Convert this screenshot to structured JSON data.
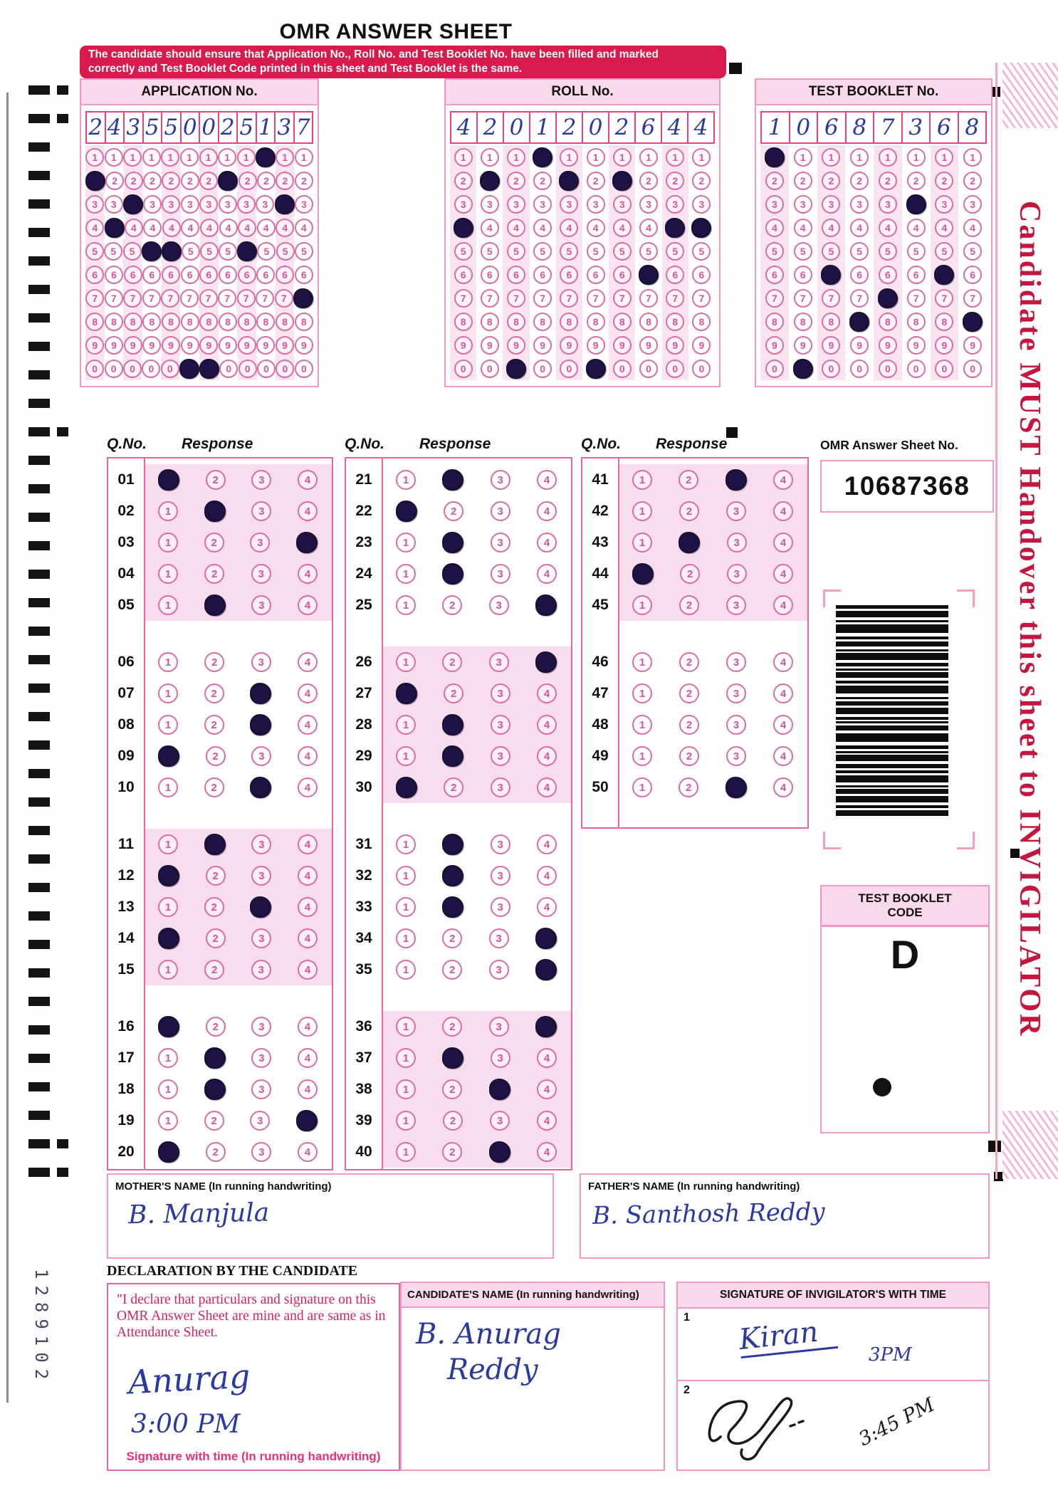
{
  "title": "OMR ANSWER SHEET",
  "banner_line1": "The candidate should ensure that Application No., Roll No. and Test Booklet No. have been filled and marked",
  "banner_line2": "correctly and Test Booklet Code printed in this sheet and Test Booklet is the same.",
  "number_sections": [
    {
      "id": "application",
      "title": "APPLICATION No.",
      "digits": [
        "2",
        "4",
        "3",
        "5",
        "5",
        "0",
        "0",
        "2",
        "5",
        "1",
        "3",
        "7"
      ]
    },
    {
      "id": "roll",
      "title": "ROLL No.",
      "digits": [
        "4",
        "2",
        "0",
        "1",
        "2",
        "0",
        "2",
        "6",
        "4",
        "4"
      ]
    },
    {
      "id": "booklet",
      "title": "TEST BOOKLET No.",
      "digits": [
        "1",
        "0",
        "6",
        "8",
        "7",
        "3",
        "6",
        "8"
      ]
    }
  ],
  "bubble_row_labels": [
    "1",
    "2",
    "3",
    "4",
    "5",
    "6",
    "7",
    "8",
    "9",
    "0"
  ],
  "response_header": {
    "qno": "Q.No.",
    "response": "Response"
  },
  "options": [
    "1",
    "2",
    "3",
    "4"
  ],
  "question_columns": [
    {
      "groups": [
        {
          "shaded": true,
          "items": [
            {
              "no": "01",
              "marked": 1
            },
            {
              "no": "02",
              "marked": 2
            },
            {
              "no": "03",
              "marked": 4
            },
            {
              "no": "04",
              "marked": null
            },
            {
              "no": "05",
              "marked": 2
            }
          ]
        },
        {
          "shaded": false,
          "items": [
            {
              "no": "06",
              "marked": null
            },
            {
              "no": "07",
              "marked": 3
            },
            {
              "no": "08",
              "marked": 3
            },
            {
              "no": "09",
              "marked": 1
            },
            {
              "no": "10",
              "marked": 3
            }
          ]
        },
        {
          "shaded": true,
          "items": [
            {
              "no": "11",
              "marked": 2
            },
            {
              "no": "12",
              "marked": 1
            },
            {
              "no": "13",
              "marked": 3
            },
            {
              "no": "14",
              "marked": 1
            },
            {
              "no": "15",
              "marked": null
            }
          ]
        },
        {
          "shaded": false,
          "items": [
            {
              "no": "16",
              "marked": 1
            },
            {
              "no": "17",
              "marked": 2
            },
            {
              "no": "18",
              "marked": 2
            },
            {
              "no": "19",
              "marked": 4
            },
            {
              "no": "20",
              "marked": 1
            }
          ]
        }
      ]
    },
    {
      "groups": [
        {
          "shaded": false,
          "items": [
            {
              "no": "21",
              "marked": 2
            },
            {
              "no": "22",
              "marked": 1
            },
            {
              "no": "23",
              "marked": 2
            },
            {
              "no": "24",
              "marked": 2
            },
            {
              "no": "25",
              "marked": 4
            }
          ]
        },
        {
          "shaded": true,
          "items": [
            {
              "no": "26",
              "marked": 4
            },
            {
              "no": "27",
              "marked": 1
            },
            {
              "no": "28",
              "marked": 2
            },
            {
              "no": "29",
              "marked": 2
            },
            {
              "no": "30",
              "marked": 1
            }
          ]
        },
        {
          "shaded": false,
          "items": [
            {
              "no": "31",
              "marked": 2
            },
            {
              "no": "32",
              "marked": 2
            },
            {
              "no": "33",
              "marked": 2
            },
            {
              "no": "34",
              "marked": 4
            },
            {
              "no": "35",
              "marked": 4
            }
          ]
        },
        {
          "shaded": true,
          "items": [
            {
              "no": "36",
              "marked": 4
            },
            {
              "no": "37",
              "marked": 2
            },
            {
              "no": "38",
              "marked": 3
            },
            {
              "no": "39",
              "marked": null
            },
            {
              "no": "40",
              "marked": 3
            }
          ]
        }
      ]
    },
    {
      "groups": [
        {
          "shaded": true,
          "items": [
            {
              "no": "41",
              "marked": 3
            },
            {
              "no": "42",
              "marked": null
            },
            {
              "no": "43",
              "marked": 2
            },
            {
              "no": "44",
              "marked": 1
            },
            {
              "no": "45",
              "marked": null
            }
          ]
        },
        {
          "shaded": false,
          "items": [
            {
              "no": "46",
              "marked": null
            },
            {
              "no": "47",
              "marked": null
            },
            {
              "no": "48",
              "marked": null
            },
            {
              "no": "49",
              "marked": null
            },
            {
              "no": "50",
              "marked": 3
            }
          ]
        }
      ]
    }
  ],
  "omr_sheet_no": {
    "label": "OMR Answer Sheet No.",
    "value": "10687368"
  },
  "test_booklet_code": {
    "title_line1": "TEST BOOKLET",
    "title_line2": "CODE",
    "value": "D"
  },
  "mother": {
    "label": "MOTHER'S NAME (In running handwriting)",
    "value": "B. Manjula"
  },
  "father": {
    "label": "FATHER'S NAME (In running handwriting)",
    "value": "B. Santhosh Reddy"
  },
  "candidate": {
    "label": "CANDIDATE'S NAME (In running handwriting)",
    "value_line1": "B. Anurag",
    "value_line2": "Reddy"
  },
  "declaration": {
    "heading": "DECLARATION BY THE CANDIDATE",
    "text": "\"I declare that particulars and signature on this OMR Answer Sheet are mine and are same as in Attendance Sheet.",
    "signature": "Anurag",
    "time": "3:00 PM",
    "footer": "Signature with time (In running handwriting)"
  },
  "invigilator": {
    "header": "SIGNATURE OF INVIGILATOR'S WITH TIME",
    "row1": {
      "index": "1",
      "signature": "Kiran",
      "time": "3PM"
    },
    "row2": {
      "index": "2",
      "time": "3:45 PM"
    }
  },
  "side_strip_text": "Candidate MUST Handover this sheet to INVIGILATOR",
  "serial_number": "1289102",
  "colors": {
    "banner_red": "#d81b4c",
    "bubble_pink": "#dd6ba6",
    "mark_ink": "#1d1243",
    "handwriting_blue": "#2b3a9e",
    "strip_red": "#c2173f"
  }
}
